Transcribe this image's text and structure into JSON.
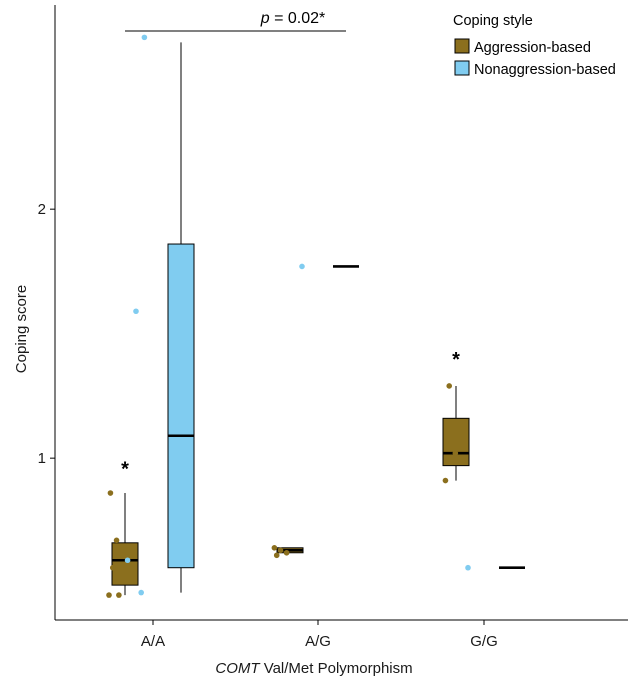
{
  "chart_data": {
    "type": "box",
    "ylabel": "Coping score",
    "xlabel": {
      "italic": "COMT",
      "rest": " Val/Met Polymorphism"
    },
    "categories": [
      "A/A",
      "A/G",
      "G/G"
    ],
    "y_ticks": [
      1,
      2
    ],
    "ylim": [
      0.35,
      2.82
    ],
    "legend": {
      "title": "Coping style",
      "placement": "top-right",
      "entries": [
        "Aggression-based",
        "Nonaggression-based"
      ]
    },
    "series": [
      {
        "name": "Aggression-based",
        "color": "#8b6f1e",
        "dot_color": "#8b6f1e",
        "boxes": [
          {
            "category": "A/A",
            "min": 0.45,
            "q1": 0.49,
            "median": 0.59,
            "q3": 0.66,
            "max": 0.86
          },
          {
            "category": "A/G",
            "min": 0.62,
            "q1": 0.62,
            "median": 0.63,
            "q3": 0.64,
            "max": 0.64
          },
          {
            "category": "G/G",
            "min": 0.91,
            "q1": 0.97,
            "median": 1.02,
            "q3": 1.16,
            "max": 1.29
          }
        ],
        "points": [
          {
            "category": "A/A",
            "values": [
              0.45,
              0.45,
              0.56,
              0.61,
              0.67,
              0.86
            ]
          },
          {
            "category": "A/G",
            "values": [
              0.61,
              0.62,
              0.63,
              0.64
            ]
          },
          {
            "category": "G/G",
            "values": [
              0.91,
              1.02,
              1.29
            ]
          }
        ]
      },
      {
        "name": "Nonaggression-based",
        "color": "#80ccf0",
        "dot_color": "#80ccf0",
        "boxes": [
          {
            "category": "A/A",
            "min": 0.46,
            "q1": 0.56,
            "median": 1.09,
            "q3": 1.86,
            "max": 2.67
          },
          {
            "category": "A/G",
            "min": 1.77,
            "q1": 1.77,
            "median": 1.77,
            "q3": 1.77,
            "max": 1.77
          },
          {
            "category": "G/G",
            "min": 0.56,
            "q1": 0.56,
            "median": 0.56,
            "q3": 0.56,
            "max": 0.56
          }
        ],
        "points": [
          {
            "category": "A/A",
            "values": [
              0.46,
              0.59,
              1.59,
              2.69
            ]
          },
          {
            "category": "A/G",
            "values": [
              1.77
            ]
          },
          {
            "category": "G/G",
            "values": [
              0.56
            ]
          }
        ]
      }
    ],
    "annotations": {
      "comparison": {
        "p_symbol": "p",
        "text": " = 0.02*",
        "from": "A/A",
        "to": "A/G"
      },
      "stars": [
        {
          "category": "A/A",
          "label": "*",
          "y": 0.97
        },
        {
          "category": "G/G",
          "label": "*",
          "y": 1.41
        }
      ]
    }
  }
}
